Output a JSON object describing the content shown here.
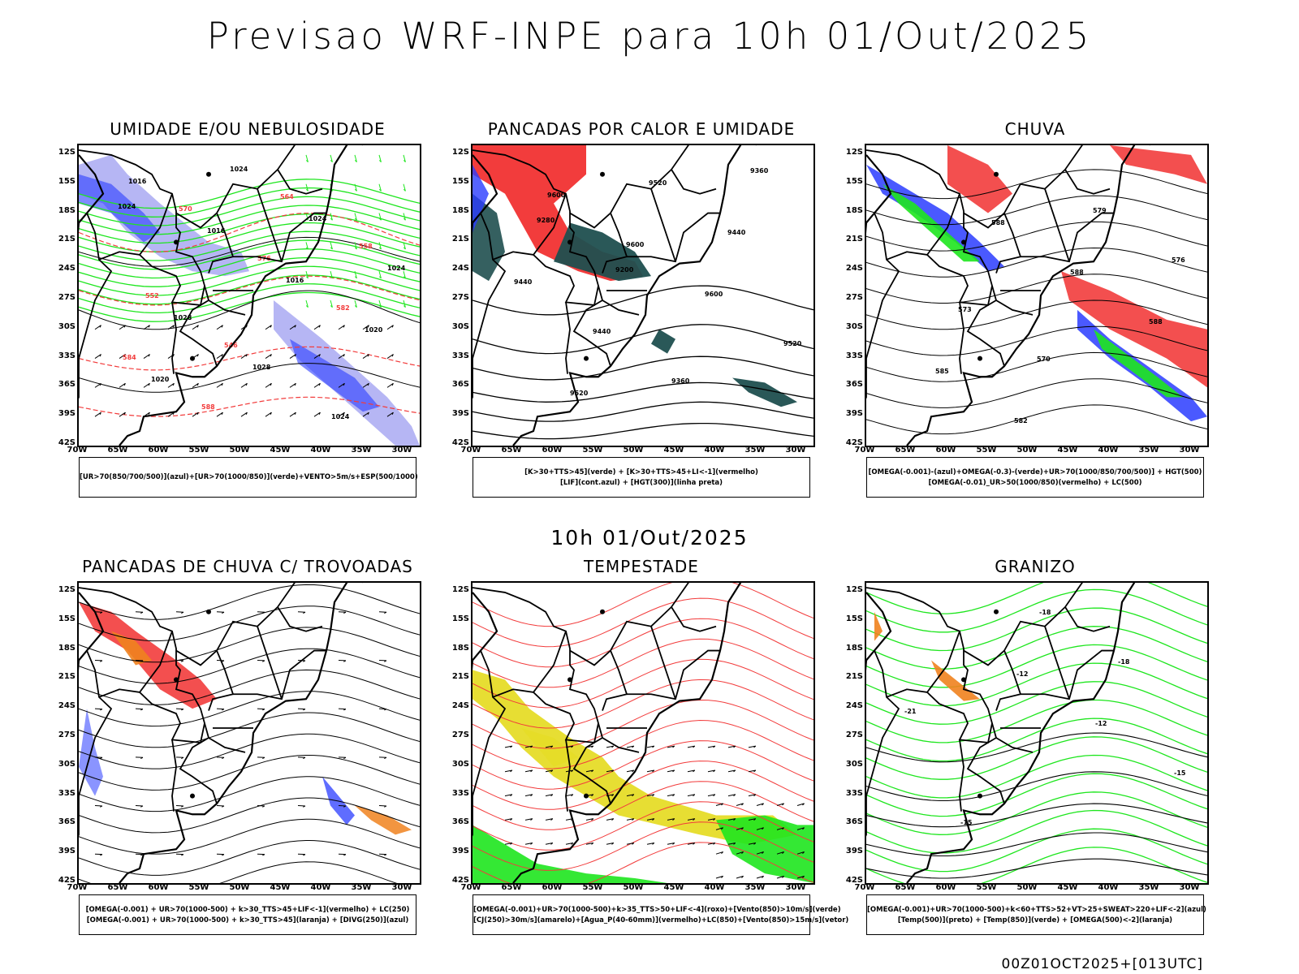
{
  "title": "Previsao WRF-INPE  para 10h 01/Out/2025",
  "middle_title": "10h 01/Out/2025",
  "footer": "00Z01OCT2025+[013UTC]",
  "lat_labels": [
    "12S",
    "15S",
    "18S",
    "21S",
    "24S",
    "27S",
    "30S",
    "33S",
    "36S",
    "39S",
    "42S"
  ],
  "lon_labels": [
    "70W",
    "65W",
    "60W",
    "55W",
    "50W",
    "45W",
    "40W",
    "35W",
    "30W"
  ],
  "colors": {
    "blue": "#2a3cff",
    "lavender": "#a9a9f2",
    "green": "#1ee61e",
    "red": "#f23c3c",
    "darkgreen": "#1f4f4f",
    "yellow": "#e6dc28",
    "orange": "#f0821e",
    "borders": "#000000"
  },
  "panels": [
    {
      "title": "UMIDADE E/OU NEBULOSIDADE",
      "legend": [
        "[UR>70(850/700/500)](azul)+[UR>70(1000/850)](verde)+VENTO>5m/s+ESP(500/1000)"
      ],
      "contour_labels": [
        "1016",
        "1016",
        "1016",
        "1020",
        "1020",
        "1024",
        "1024",
        "1024",
        "1028",
        "1028",
        "1024",
        "1024",
        "570",
        "576",
        "582",
        "584",
        "588",
        "564",
        "558",
        "552",
        "546"
      ]
    },
    {
      "title": "PANCADAS POR CALOR E UMIDADE",
      "legend": [
        "[K>30+TTS>45](verde) + [K>30+TTS>45+LI<-1](vermelho)",
        "[LIF](cont.azul) + [HGT(300)](linha preta)"
      ],
      "contour_labels": [
        "9600",
        "9600",
        "9600",
        "9520",
        "9520",
        "9520",
        "9440",
        "9440",
        "9440",
        "9360",
        "9360",
        "9280",
        "9200"
      ]
    },
    {
      "title": "CHUVA",
      "legend": [
        "[OMEGA(-0.001)-(azul)+OMEGA(-0.3)-(verde)+UR>70(1000/850/700/500)] + HGT(500)",
        "[OMEGA(-0.01)_UR>50(1000/850)(vermelho) + LC(500)"
      ],
      "contour_labels": [
        "588",
        "588",
        "588",
        "585",
        "582",
        "579",
        "576",
        "573",
        "570"
      ]
    },
    {
      "title": "PANCADAS DE CHUVA C/ TROVOADAS",
      "legend": [
        "[OMEGA(-0.001) + UR>70(1000-500) + k>30_TTS>45+LIF<-1](vermelho) + LC(250)",
        "[OMEGA(-0.001) + UR>70(1000-500) + k>30_TTS>45](laranja) + [DIVG(250)](azul)"
      ],
      "contour_labels": []
    },
    {
      "title": "TEMPESTADE",
      "legend": [
        "[OMEGA(-0.001)+UR>70(1000-500)+k>35_TTS>50+LIF<-4](roxo)+[Vento(850)>10m/s](verde)",
        "[CJ(250)>30m/s](amarelo)+[Agua_P(40-60mm)](vermelho)+LC(850)+[Vento(850)>15m/s](vetor)"
      ],
      "contour_labels": []
    },
    {
      "title": "GRANIZO",
      "legend": [
        "[OMEGA(-0.001)+UR>70(1000-500)+k<60+TTS>52+VT>25+SWEAT>220+LIF<-2](azul)",
        "[Temp(500)](preto) + [Temp(850)](verde) + [OMEGA(500)<-2](laranja)"
      ],
      "contour_labels": [
        "-12",
        "-12",
        "-15",
        "-15",
        "-18",
        "-18",
        "-21"
      ]
    }
  ]
}
